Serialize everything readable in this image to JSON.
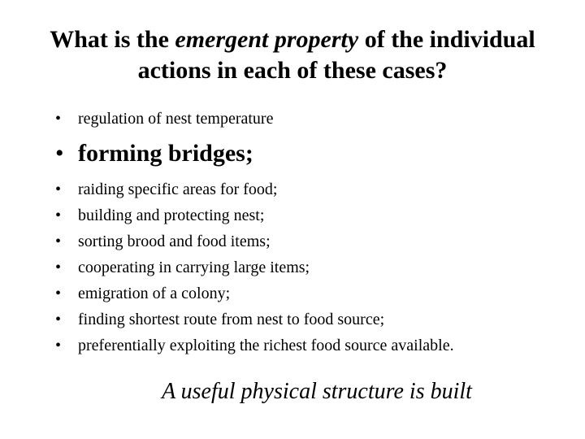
{
  "title": {
    "pre": "What is the ",
    "em": "emergent property",
    "post": " of the individual actions in each of these cases?"
  },
  "items": [
    {
      "text": "regulation of nest temperature",
      "emph": false
    },
    {
      "text": "forming bridges;",
      "emph": true
    },
    {
      "text": "raiding specific areas for food;",
      "emph": false
    },
    {
      "text": "building and protecting nest;",
      "emph": false
    },
    {
      "text": "sorting brood and food items;",
      "emph": false
    },
    {
      "text": "cooperating in carrying large items;",
      "emph": false
    },
    {
      "text": "emigration of a colony;",
      "emph": false
    },
    {
      "text": "finding shortest route from nest to food source;",
      "emph": false
    },
    {
      "text": "preferentially exploiting the richest food source available.",
      "emph": false
    }
  ],
  "closing": "A useful physical structure is built",
  "style": {
    "background_color": "#ffffff",
    "text_color": "#000000",
    "font_family": "Times New Roman",
    "title_fontsize": 30,
    "small_bullet_fontsize": 20,
    "big_bullet_fontsize": 30,
    "closing_fontsize": 28
  }
}
